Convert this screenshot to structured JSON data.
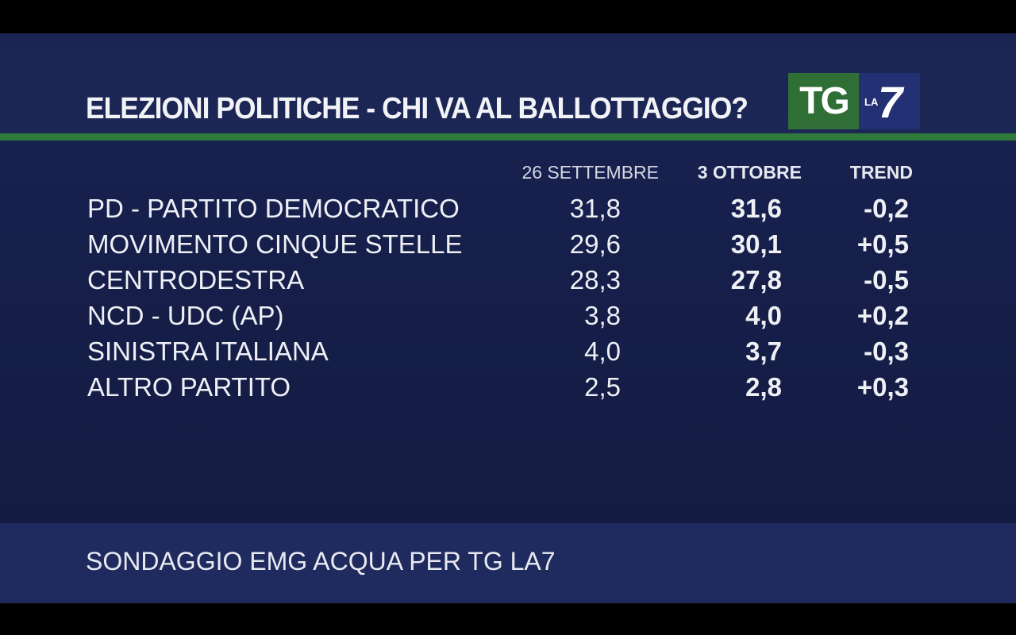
{
  "header": {
    "title": "ELEZIONI POLITICHE - CHI VA AL BALLOTTAGGIO?",
    "logo": {
      "tg": "TG",
      "la": "LA",
      "seven": "7"
    }
  },
  "colors": {
    "background": "#1a2454",
    "accent_green": "#2f7a3a",
    "logo_green": "#2f6e34",
    "logo_blue": "#233073",
    "footer": "#1f2a5e",
    "text": "#eef0f5"
  },
  "chart_data": {
    "type": "table",
    "title": "ELEZIONI POLITICHE - CHI VA AL BALLOTTAGGIO?",
    "columns": [
      "",
      "26 SETTEMBRE",
      "3 OTTOBRE",
      "TREND"
    ],
    "rows": [
      {
        "party": "PD - PARTITO DEMOCRATICO",
        "sep26": "31,8",
        "oct3": "31,6",
        "trend": "-0,2"
      },
      {
        "party": "MOVIMENTO CINQUE STELLE",
        "sep26": "29,6",
        "oct3": "30,1",
        "trend": "+0,5"
      },
      {
        "party": "CENTRODESTRA",
        "sep26": "28,3",
        "oct3": "27,8",
        "trend": "-0,5"
      },
      {
        "party": "NCD - UDC (AP)",
        "sep26": "3,8",
        "oct3": "4,0",
        "trend": "+0,2"
      },
      {
        "party": "SINISTRA ITALIANA",
        "sep26": "4,0",
        "oct3": "3,7",
        "trend": "-0,3"
      },
      {
        "party": "ALTRO PARTITO",
        "sep26": "2,5",
        "oct3": "2,8",
        "trend": "+0,3"
      }
    ]
  },
  "footer": {
    "source": "SONDAGGIO EMG ACQUA PER TG LA7"
  }
}
